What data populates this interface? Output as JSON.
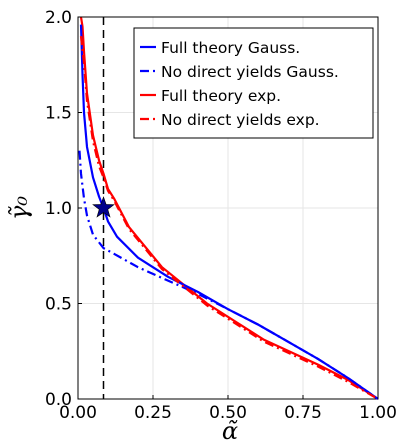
{
  "chart_data": {
    "type": "line",
    "xlabel": "α̃",
    "ylabel": "γ̃₀",
    "xlim": [
      0,
      1.0
    ],
    "ylim": [
      0,
      2.0
    ],
    "xticks": [
      "0.00",
      "0.25",
      "0.50",
      "0.75",
      "1.00"
    ],
    "yticks": [
      "0.0",
      "0.5",
      "1.0",
      "1.5",
      "2.0"
    ],
    "grid": true,
    "legend_position": "top-right",
    "vline": {
      "x": 0.085,
      "style": "dashed",
      "color": "#000000"
    },
    "marker": {
      "x": 0.085,
      "y": 1.0,
      "shape": "star",
      "color": "#00008b"
    },
    "series": [
      {
        "name": "Full theory Gauss.",
        "color": "#0000ff",
        "style": "solid",
        "x": [
          0.01,
          0.015,
          0.02,
          0.03,
          0.05,
          0.07,
          0.085,
          0.1,
          0.13,
          0.2,
          0.3,
          0.4,
          0.5,
          0.6,
          0.7,
          0.8,
          0.9,
          1.0
        ],
        "y": [
          1.96,
          1.7,
          1.5,
          1.32,
          1.16,
          1.06,
          1.0,
          0.93,
          0.85,
          0.74,
          0.64,
          0.56,
          0.47,
          0.39,
          0.3,
          0.21,
          0.11,
          0.0
        ]
      },
      {
        "name": "No direct yields Gauss.",
        "color": "#0000ff",
        "style": "dashdot",
        "x": [
          0.005,
          0.01,
          0.02,
          0.03,
          0.05,
          0.085,
          0.12,
          0.2,
          0.3,
          0.4,
          0.5,
          0.6,
          0.7,
          0.8,
          0.9,
          1.0
        ],
        "y": [
          1.3,
          1.18,
          1.05,
          0.96,
          0.86,
          0.79,
          0.76,
          0.69,
          0.62,
          0.55,
          0.47,
          0.39,
          0.3,
          0.21,
          0.11,
          0.0
        ]
      },
      {
        "name": "Full theory exp.",
        "color": "#ff0000",
        "style": "solid",
        "x": [
          0.01,
          0.015,
          0.02,
          0.03,
          0.05,
          0.07,
          0.085,
          0.1,
          0.12,
          0.17,
          0.28,
          0.43,
          0.62,
          0.8,
          0.9,
          1.0
        ],
        "y": [
          2.0,
          1.95,
          1.82,
          1.6,
          1.38,
          1.25,
          1.18,
          1.1,
          1.05,
          0.9,
          0.69,
          0.5,
          0.31,
          0.18,
          0.1,
          0.0
        ]
      },
      {
        "name": "No direct yields exp.",
        "color": "#ff0000",
        "style": "dashdot",
        "x": [
          0.01,
          0.02,
          0.03,
          0.05,
          0.07,
          0.085,
          0.1,
          0.12,
          0.17,
          0.28,
          0.43,
          0.62,
          0.8,
          0.9,
          1.0
        ],
        "y": [
          1.9,
          1.76,
          1.56,
          1.35,
          1.22,
          1.16,
          1.09,
          1.04,
          0.89,
          0.68,
          0.49,
          0.3,
          0.17,
          0.09,
          0.0
        ]
      }
    ]
  }
}
